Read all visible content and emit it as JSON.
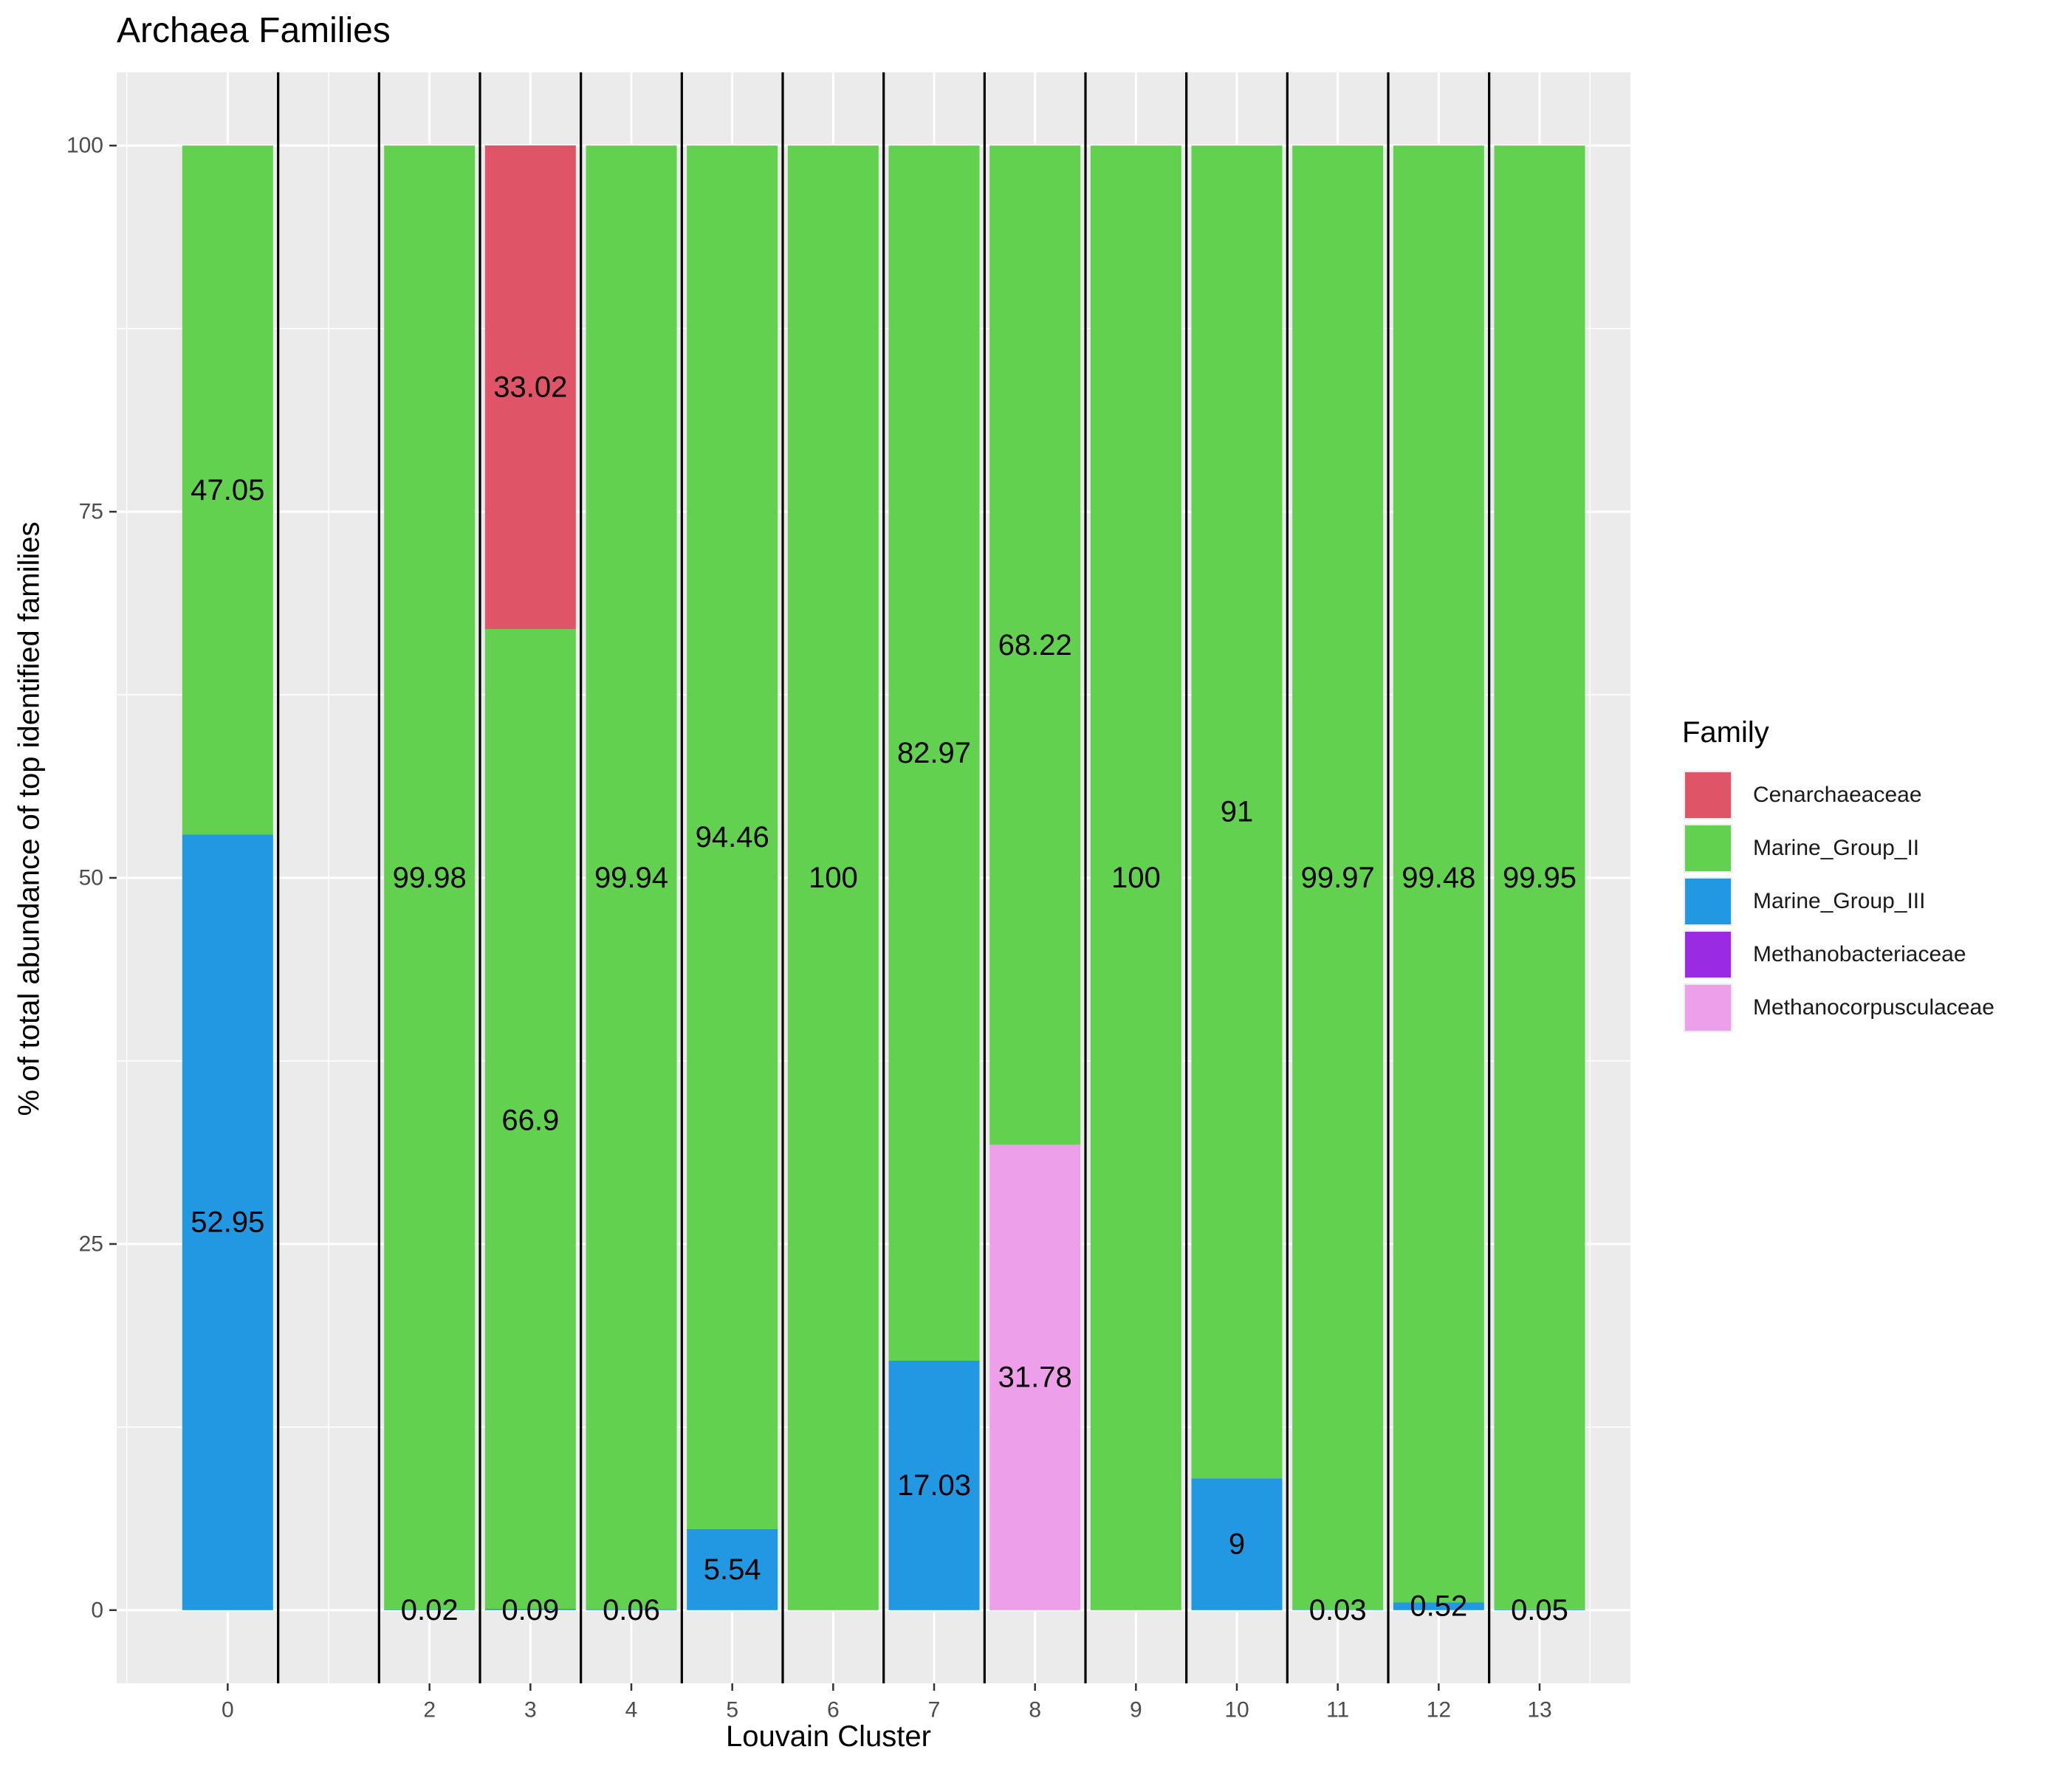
{
  "chart_data": {
    "type": "bar",
    "stacked": true,
    "title": "Archaea Families",
    "xlabel": "Louvain Cluster",
    "ylabel": "% of total abundance of top identified families",
    "categories": [
      0,
      2,
      3,
      4,
      5,
      6,
      7,
      8,
      9,
      10,
      11,
      12,
      13
    ],
    "x_tick_labels": [
      "0",
      "2",
      "3",
      "4",
      "5",
      "6",
      "7",
      "8",
      "9",
      "10",
      "11",
      "12",
      "13"
    ],
    "y_tick_labels": [
      "0",
      "25",
      "50",
      "75",
      "100"
    ],
    "y_ticks": [
      0,
      25,
      50,
      75,
      100
    ],
    "xlim": [
      -1.1,
      13.9
    ],
    "ylim": [
      -5,
      105
    ],
    "grid": true,
    "legend_position": "right",
    "legend_title": "Family",
    "series": [
      {
        "name": "Cenarchaeaceae",
        "color": "#E05468",
        "values": [
          0,
          0,
          33.02,
          0,
          0,
          0,
          0,
          0,
          0,
          0,
          0,
          0,
          0
        ]
      },
      {
        "name": "Marine_Group_II",
        "color": "#62D150",
        "values": [
          47.05,
          99.98,
          66.9,
          99.94,
          94.46,
          100,
          82.97,
          68.22,
          100,
          91,
          99.97,
          99.48,
          99.95
        ]
      },
      {
        "name": "Marine_Group_III",
        "color": "#2398E2",
        "values": [
          52.95,
          0.02,
          0.09,
          0.06,
          5.54,
          0,
          17.03,
          0,
          0,
          9,
          0.03,
          0.52,
          0.05
        ]
      },
      {
        "name": "Methanobacteriaceae",
        "color": "#9A2BE2",
        "values": [
          0,
          0,
          0,
          0,
          0,
          0,
          0,
          0,
          0,
          0,
          0,
          0,
          0
        ]
      },
      {
        "name": "Methanocorpusculaceae",
        "color": "#ED9FEA",
        "values": [
          0,
          0,
          0,
          0,
          0,
          0,
          0,
          31.78,
          0,
          0,
          0,
          0,
          0
        ]
      }
    ],
    "data_labels": [
      {
        "x": 0,
        "y": 26.475,
        "text": "52.95"
      },
      {
        "x": 0,
        "y": 76.475,
        "text": "47.05"
      },
      {
        "x": 2,
        "y": 0,
        "text": "0.02"
      },
      {
        "x": 2,
        "y": 50,
        "text": "99.98"
      },
      {
        "x": 3,
        "y": 0,
        "text": "0.09"
      },
      {
        "x": 3,
        "y": 33.45,
        "text": "66.9"
      },
      {
        "x": 3,
        "y": 83.49,
        "text": "33.02"
      },
      {
        "x": 4,
        "y": 0,
        "text": "0.06"
      },
      {
        "x": 4,
        "y": 50,
        "text": "99.94"
      },
      {
        "x": 5,
        "y": 2.77,
        "text": "5.54"
      },
      {
        "x": 5,
        "y": 52.77,
        "text": "94.46"
      },
      {
        "x": 6,
        "y": 50,
        "text": "100"
      },
      {
        "x": 7,
        "y": 8.515,
        "text": "17.03"
      },
      {
        "x": 7,
        "y": 58.515,
        "text": "82.97"
      },
      {
        "x": 8,
        "y": 15.89,
        "text": "31.78"
      },
      {
        "x": 8,
        "y": 65.89,
        "text": "68.22"
      },
      {
        "x": 9,
        "y": 50,
        "text": "100"
      },
      {
        "x": 10,
        "y": 4.5,
        "text": "9"
      },
      {
        "x": 10,
        "y": 54.5,
        "text": "91"
      },
      {
        "x": 11,
        "y": 0,
        "text": "0.03"
      },
      {
        "x": 11,
        "y": 50,
        "text": "99.97"
      },
      {
        "x": 12,
        "y": 0.26,
        "text": "0.52"
      },
      {
        "x": 12,
        "y": 50,
        "text": "99.48"
      },
      {
        "x": 13,
        "y": 0,
        "text": "0.05"
      },
      {
        "x": 13,
        "y": 50,
        "text": "99.95"
      }
    ],
    "separator_lines_x": [
      0.5,
      1.5,
      2.5,
      3.5,
      4.5,
      5.5,
      6.5,
      7.5,
      8.5,
      9.5,
      10.5,
      11.5,
      12.5
    ],
    "panel_background": "#EBEBEB",
    "grid_color": "#FFFFFF"
  }
}
